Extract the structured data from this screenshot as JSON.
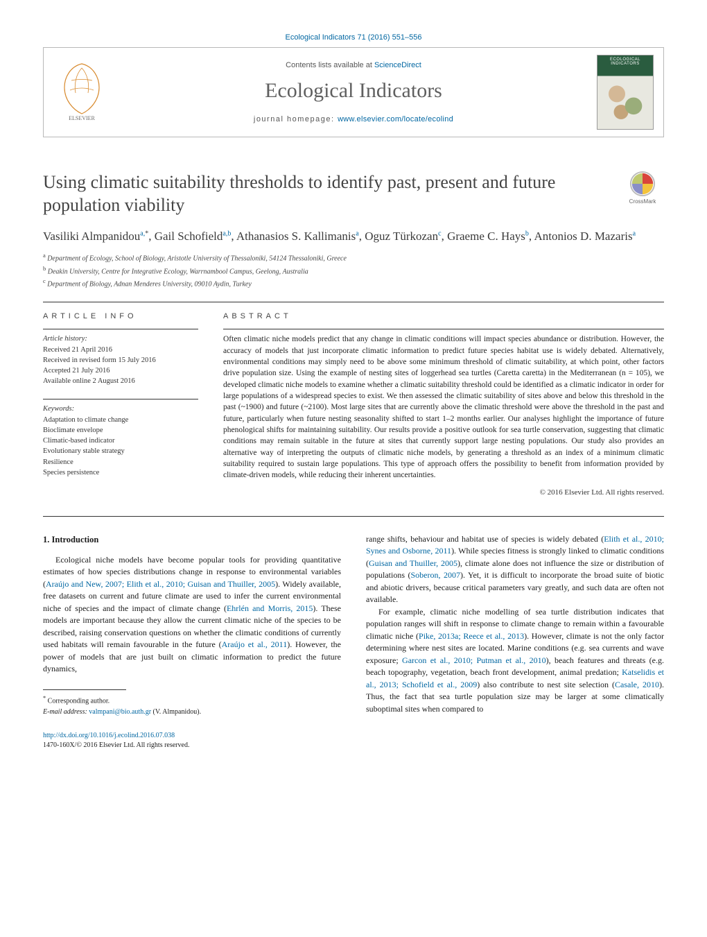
{
  "journal_ref_line": "Ecological Indicators 71 (2016) 551–556",
  "header": {
    "contents_line_prefix": "Contents lists available at ",
    "contents_line_link": "ScienceDirect",
    "journal_title": "Ecological Indicators",
    "homepage_prefix": "journal homepage: ",
    "homepage_url": "www.elsevier.com/locate/ecolind",
    "cover_label": "ECOLOGICAL INDICATORS"
  },
  "crossmark_label": "CrossMark",
  "title": "Using climatic suitability thresholds to identify past, present and future population viability",
  "authors_html": "Vasiliki Almpanidou<sup>a,</sup><sup class='sup-star'>*</sup>, Gail Schofield<sup>a,b</sup>, Athanasios S. Kallimanis<sup>a</sup>, Oguz Türkozan<sup>c</sup>, Graeme C. Hays<sup>b</sup>, Antonios D. Mazaris<sup>a</sup>",
  "affiliations": [
    {
      "sup": "a",
      "text": "Department of Ecology, School of Biology, Aristotle University of Thessaloniki, 54124 Thessaloniki, Greece"
    },
    {
      "sup": "b",
      "text": "Deakin University, Centre for Integrative Ecology, Warrnambool Campus, Geelong, Australia"
    },
    {
      "sup": "c",
      "text": "Department of Biology, Adnan Menderes University, 09010 Aydin, Turkey"
    }
  ],
  "info_label": "article info",
  "abstract_label": "abstract",
  "history": {
    "head": "Article history:",
    "lines": [
      "Received 21 April 2016",
      "Received in revised form 15 July 2016",
      "Accepted 21 July 2016",
      "Available online 2 August 2016"
    ]
  },
  "keywords": {
    "head": "Keywords:",
    "items": [
      "Adaptation to climate change",
      "Bioclimate envelope",
      "Climatic-based indicator",
      "Evolutionary stable strategy",
      "Resilience",
      "Species persistence"
    ]
  },
  "abstract_text": "Often climatic niche models predict that any change in climatic conditions will impact species abundance or distribution. However, the accuracy of models that just incorporate climatic information to predict future species habitat use is widely debated. Alternatively, environmental conditions may simply need to be above some minimum threshold of climatic suitability, at which point, other factors drive population size. Using the example of nesting sites of loggerhead sea turtles (Caretta caretta) in the Mediterranean (n = 105), we developed climatic niche models to examine whether a climatic suitability threshold could be identified as a climatic indicator in order for large populations of a widespread species to exist. We then assessed the climatic suitability of sites above and below this threshold in the past (~1900) and future (~2100). Most large sites that are currently above the climatic threshold were above the threshold in the past and future, particularly when future nesting seasonality shifted to start 1–2 months earlier. Our analyses highlight the importance of future phenological shifts for maintaining suitability. Our results provide a positive outlook for sea turtle conservation, suggesting that climatic conditions may remain suitable in the future at sites that currently support large nesting populations. Our study also provides an alternative way of interpreting the outputs of climatic niche models, by generating a threshold as an index of a minimum climatic suitability required to sustain large populations. This type of approach offers the possibility to benefit from information provided by climate-driven models, while reducing their inherent uncertainties.",
  "copyright": "© 2016 Elsevier Ltd. All rights reserved.",
  "section1_heading": "1. Introduction",
  "col_left": {
    "p1_pre": "Ecological niche models have become popular tools for providing quantitative estimates of how species distributions change in response to environmental variables (",
    "cite1": "Araújo and New, 2007; Elith et al., 2010; Guisan and Thuiller, 2005",
    "p1_mid1": "). Widely available, free datasets on current and future climate are used to infer the current environmental niche of species and the impact of climate change (",
    "cite2": "Ehrlén and Morris, 2015",
    "p1_mid2": "). These models are important because they allow the current climatic niche of the species to be described, raising conservation questions on whether the climatic conditions of currently used habitats will remain favourable in the future (",
    "cite3": "Araújo et al., 2011",
    "p1_post": "). However, the power of models that are just built on climatic information to predict the future dynamics,"
  },
  "col_right": {
    "p1_pre": "range shifts, behaviour and habitat use of species is widely debated (",
    "cite1": "Elith et al., 2010; Synes and Osborne, 2011",
    "p1_mid1": "). While species fitness is strongly linked to climatic conditions (",
    "cite2": "Guisan and Thuiller, 2005",
    "p1_mid2": "), climate alone does not influence the size or distribution of populations (",
    "cite3": "Soberon, 2007",
    "p1_post": "). Yet, it is difficult to incorporate the broad suite of biotic and abiotic drivers, because critical parameters vary greatly, and such data are often not available.",
    "p2_pre": "For example, climatic niche modelling of sea turtle distribution indicates that population ranges will shift in response to climate change to remain within a favourable climatic niche (",
    "cite4": "Pike, 2013a; Reece et al., 2013",
    "p2_mid1": "). However, climate is not the only factor determining where nest sites are located. Marine conditions (e.g. sea currents and wave exposure; ",
    "cite5": "Garcon et al., 2010; Putman et al., 2010",
    "p2_mid2": "), beach features and threats (e.g. beach topography, vegetation, beach front development, animal predation; ",
    "cite6": "Katselidis et al., 2013; Schofield et al., 2009",
    "p2_mid3": ") also contribute to nest site selection (",
    "cite7": "Casale, 2010",
    "p2_post": "). Thus, the fact that sea turtle population size may be larger at some climatically suboptimal sites when compared to"
  },
  "footnotes": {
    "corr": "Corresponding author.",
    "email_label": "E-mail address:",
    "email": "valmpani@bio.auth.gr",
    "email_who": "(V. Almpanidou)."
  },
  "doi": {
    "url": "http://dx.doi.org/10.1016/j.ecolind.2016.07.038",
    "issn_line": "1470-160X/© 2016 Elsevier Ltd. All rights reserved."
  },
  "colors": {
    "link": "#0066a1",
    "title_gray": "#5f5f5f",
    "text": "#1a1a1a",
    "border": "#b8b8b8"
  },
  "typography": {
    "body_pt": 12,
    "title_pt": 26,
    "journal_title_pt": 30,
    "abstract_pt": 11.5,
    "affil_pt": 10
  }
}
